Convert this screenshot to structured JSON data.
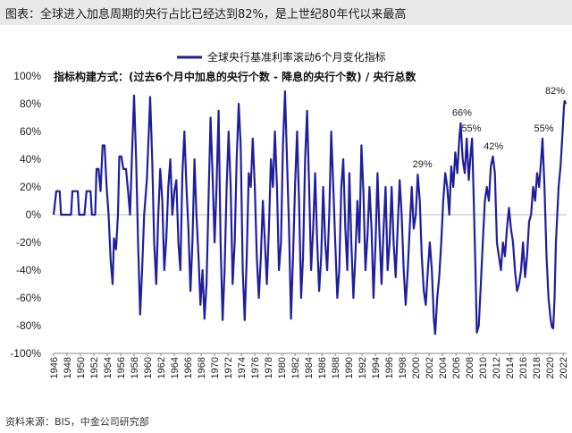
{
  "header": {
    "title": "图表：全球进入加息周期的央行占比已经达到82%，是上世纪80年代以来最高"
  },
  "footer": {
    "source": "资料来源：BIS，中金公司研究部"
  },
  "colors": {
    "series": "#1f1f9c",
    "zero_line": "#bdbdbd",
    "header_bg": "#e9e9e9"
  },
  "chart_data": {
    "type": "line",
    "title": "",
    "xlabel": "",
    "ylabel": "",
    "legend": {
      "label": "全球央行基准利率滚动6个月变化指标",
      "position": "top-center"
    },
    "subtitle": "指标构建方式：(过去6个月中加息的央行个数 - 降息的央行个数) / 央行总数",
    "xlim": [
      1946,
      2022.5
    ],
    "ylim": [
      -100,
      100
    ],
    "yticks": [
      "100%",
      "80%",
      "60%",
      "40%",
      "20%",
      "0%",
      "-20%",
      "-40%",
      "-60%",
      "-80%",
      "-100%"
    ],
    "xticks": [
      "1946",
      "1948",
      "1950",
      "1952",
      "1954",
      "1956",
      "1958",
      "1960",
      "1962",
      "1964",
      "1966",
      "1968",
      "1970",
      "1972",
      "1974",
      "1976",
      "1978",
      "1980",
      "1982",
      "1984",
      "1986",
      "1988",
      "1990",
      "1992",
      "1994",
      "1996",
      "1998",
      "2000",
      "2002",
      "2004",
      "2006",
      "2008",
      "2010",
      "2012",
      "2014",
      "2016",
      "2018",
      "2020",
      "2022"
    ],
    "grid": false,
    "annotations": [
      {
        "text": "29%",
        "x": 2001.0,
        "y": 29
      },
      {
        "text": "66%",
        "x": 2006.9,
        "y": 66
      },
      {
        "text": "55%",
        "x": 2008.3,
        "y": 55
      },
      {
        "text": "42%",
        "x": 2011.6,
        "y": 42
      },
      {
        "text": "55%",
        "x": 2019.1,
        "y": 55
      },
      {
        "text": "82%",
        "x": 2022.2,
        "y": 82
      }
    ],
    "series": [
      {
        "name": "全球央行基准利率滚动6个月变化指标",
        "points": [
          [
            1946.0,
            0
          ],
          [
            1946.4,
            17
          ],
          [
            1946.9,
            17
          ],
          [
            1947.1,
            0
          ],
          [
            1948.6,
            0
          ],
          [
            1948.8,
            17
          ],
          [
            1949.6,
            17
          ],
          [
            1949.8,
            0
          ],
          [
            1950.6,
            0
          ],
          [
            1950.9,
            17
          ],
          [
            1951.5,
            17
          ],
          [
            1951.7,
            0
          ],
          [
            1952.2,
            0
          ],
          [
            1952.4,
            33
          ],
          [
            1952.7,
            33
          ],
          [
            1953.0,
            17
          ],
          [
            1953.3,
            50
          ],
          [
            1953.6,
            50
          ],
          [
            1953.9,
            20
          ],
          [
            1954.2,
            0
          ],
          [
            1954.5,
            -33
          ],
          [
            1954.8,
            -50
          ],
          [
            1955.0,
            -17
          ],
          [
            1955.3,
            -25
          ],
          [
            1955.6,
            0
          ],
          [
            1955.8,
            42
          ],
          [
            1956.1,
            42
          ],
          [
            1956.4,
            33
          ],
          [
            1956.8,
            33
          ],
          [
            1957.1,
            17
          ],
          [
            1957.4,
            0
          ],
          [
            1957.7,
            45
          ],
          [
            1958.0,
            86
          ],
          [
            1958.3,
            40
          ],
          [
            1958.6,
            -20
          ],
          [
            1958.9,
            -72
          ],
          [
            1959.2,
            -40
          ],
          [
            1959.5,
            0
          ],
          [
            1959.9,
            25
          ],
          [
            1960.2,
            60
          ],
          [
            1960.4,
            85
          ],
          [
            1960.7,
            40
          ],
          [
            1961.0,
            -20
          ],
          [
            1961.3,
            -50
          ],
          [
            1961.6,
            0
          ],
          [
            1961.9,
            33
          ],
          [
            1962.2,
            10
          ],
          [
            1962.5,
            -40
          ],
          [
            1962.8,
            -17
          ],
          [
            1963.1,
            20
          ],
          [
            1963.4,
            40
          ],
          [
            1963.7,
            0
          ],
          [
            1964.0,
            17
          ],
          [
            1964.3,
            25
          ],
          [
            1964.6,
            -20
          ],
          [
            1964.9,
            -40
          ],
          [
            1965.2,
            30
          ],
          [
            1965.5,
            60
          ],
          [
            1965.8,
            20
          ],
          [
            1966.1,
            -10
          ],
          [
            1966.4,
            -55
          ],
          [
            1966.7,
            -20
          ],
          [
            1967.0,
            40
          ],
          [
            1967.3,
            0
          ],
          [
            1967.6,
            -30
          ],
          [
            1967.9,
            -65
          ],
          [
            1968.2,
            -40
          ],
          [
            1968.5,
            -75
          ],
          [
            1968.8,
            -50
          ],
          [
            1969.1,
            10
          ],
          [
            1969.4,
            70
          ],
          [
            1969.7,
            30
          ],
          [
            1970.0,
            -20
          ],
          [
            1970.3,
            20
          ],
          [
            1970.6,
            75
          ],
          [
            1970.9,
            -20
          ],
          [
            1971.2,
            -76
          ],
          [
            1971.5,
            -40
          ],
          [
            1971.8,
            20
          ],
          [
            1972.1,
            60
          ],
          [
            1972.4,
            20
          ],
          [
            1972.7,
            -50
          ],
          [
            1973.0,
            -20
          ],
          [
            1973.3,
            40
          ],
          [
            1973.6,
            80
          ],
          [
            1973.9,
            50
          ],
          [
            1974.2,
            -40
          ],
          [
            1974.5,
            -76
          ],
          [
            1974.8,
            -30
          ],
          [
            1975.1,
            30
          ],
          [
            1975.4,
            20
          ],
          [
            1975.7,
            55
          ],
          [
            1976.0,
            20
          ],
          [
            1976.3,
            -30
          ],
          [
            1976.6,
            -60
          ],
          [
            1976.9,
            -30
          ],
          [
            1977.2,
            10
          ],
          [
            1977.5,
            -20
          ],
          [
            1977.8,
            -50
          ],
          [
            1978.1,
            -10
          ],
          [
            1978.4,
            40
          ],
          [
            1978.7,
            20
          ],
          [
            1979.0,
            60
          ],
          [
            1979.3,
            20
          ],
          [
            1979.6,
            -40
          ],
          [
            1979.9,
            -20
          ],
          [
            1980.2,
            50
          ],
          [
            1980.5,
            89
          ],
          [
            1980.8,
            40
          ],
          [
            1981.1,
            -10
          ],
          [
            1981.4,
            -75
          ],
          [
            1981.7,
            -30
          ],
          [
            1982.0,
            20
          ],
          [
            1982.3,
            60
          ],
          [
            1982.6,
            10
          ],
          [
            1982.9,
            -60
          ],
          [
            1983.2,
            -30
          ],
          [
            1983.5,
            40
          ],
          [
            1983.8,
            75
          ],
          [
            1984.1,
            20
          ],
          [
            1984.4,
            -40
          ],
          [
            1984.7,
            -10
          ],
          [
            1985.0,
            30
          ],
          [
            1985.3,
            -20
          ],
          [
            1985.6,
            -55
          ],
          [
            1985.9,
            -30
          ],
          [
            1986.2,
            20
          ],
          [
            1986.5,
            -20
          ],
          [
            1986.8,
            -40
          ],
          [
            1987.1,
            0
          ],
          [
            1987.4,
            60
          ],
          [
            1987.7,
            20
          ],
          [
            1988.0,
            -20
          ],
          [
            1988.3,
            -60
          ],
          [
            1988.6,
            -40
          ],
          [
            1988.9,
            20
          ],
          [
            1989.2,
            40
          ],
          [
            1989.5,
            -10
          ],
          [
            1989.8,
            -40
          ],
          [
            1990.1,
            30
          ],
          [
            1990.4,
            -20
          ],
          [
            1990.7,
            -60
          ],
          [
            1991.0,
            -30
          ],
          [
            1991.3,
            10
          ],
          [
            1991.6,
            -20
          ],
          [
            1991.9,
            50
          ],
          [
            1992.2,
            15
          ],
          [
            1992.5,
            -40
          ],
          [
            1992.8,
            -15
          ],
          [
            1993.1,
            20
          ],
          [
            1993.4,
            -10
          ],
          [
            1993.7,
            -60
          ],
          [
            1994.0,
            -20
          ],
          [
            1994.3,
            30
          ],
          [
            1994.6,
            -15
          ],
          [
            1994.9,
            -50
          ],
          [
            1995.2,
            -10
          ],
          [
            1995.5,
            20
          ],
          [
            1995.8,
            -40
          ],
          [
            1996.1,
            -20
          ],
          [
            1996.4,
            20
          ],
          [
            1996.7,
            -20
          ],
          [
            1997.0,
            -45
          ],
          [
            1997.3,
            -10
          ],
          [
            1997.6,
            25
          ],
          [
            1997.9,
            0
          ],
          [
            1998.2,
            -40
          ],
          [
            1998.5,
            -65
          ],
          [
            1998.8,
            -40
          ],
          [
            1999.1,
            -10
          ],
          [
            1999.4,
            20
          ],
          [
            1999.7,
            -10
          ],
          [
            2000.0,
            0
          ],
          [
            2000.3,
            29
          ],
          [
            2000.6,
            10
          ],
          [
            2000.9,
            -30
          ],
          [
            2001.2,
            -55
          ],
          [
            2001.5,
            -65
          ],
          [
            2001.8,
            -40
          ],
          [
            2002.1,
            -20
          ],
          [
            2002.4,
            -40
          ],
          [
            2002.7,
            -75
          ],
          [
            2002.9,
            -86
          ],
          [
            2003.2,
            -60
          ],
          [
            2003.5,
            -45
          ],
          [
            2003.8,
            -20
          ],
          [
            2004.1,
            10
          ],
          [
            2004.4,
            30
          ],
          [
            2004.7,
            20
          ],
          [
            2005.0,
            0
          ],
          [
            2005.3,
            35
          ],
          [
            2005.6,
            20
          ],
          [
            2005.9,
            45
          ],
          [
            2006.2,
            30
          ],
          [
            2006.5,
            55
          ],
          [
            2006.7,
            66
          ],
          [
            2007.0,
            40
          ],
          [
            2007.3,
            30
          ],
          [
            2007.6,
            55
          ],
          [
            2007.9,
            25
          ],
          [
            2008.2,
            45
          ],
          [
            2008.4,
            55
          ],
          [
            2008.6,
            20
          ],
          [
            2008.9,
            -40
          ],
          [
            2009.1,
            -85
          ],
          [
            2009.4,
            -80
          ],
          [
            2009.7,
            -50
          ],
          [
            2010.0,
            -20
          ],
          [
            2010.3,
            10
          ],
          [
            2010.6,
            20
          ],
          [
            2010.9,
            10
          ],
          [
            2011.2,
            35
          ],
          [
            2011.5,
            42
          ],
          [
            2011.8,
            30
          ],
          [
            2012.1,
            -20
          ],
          [
            2012.4,
            -30
          ],
          [
            2012.7,
            -40
          ],
          [
            2013.0,
            -20
          ],
          [
            2013.3,
            -30
          ],
          [
            2013.6,
            -10
          ],
          [
            2013.9,
            5
          ],
          [
            2014.2,
            -10
          ],
          [
            2014.5,
            -20
          ],
          [
            2014.8,
            -40
          ],
          [
            2015.1,
            -55
          ],
          [
            2015.4,
            -50
          ],
          [
            2015.7,
            -40
          ],
          [
            2016.0,
            -20
          ],
          [
            2016.3,
            -45
          ],
          [
            2016.6,
            -30
          ],
          [
            2016.9,
            -5
          ],
          [
            2017.2,
            0
          ],
          [
            2017.5,
            20
          ],
          [
            2017.8,
            10
          ],
          [
            2018.1,
            30
          ],
          [
            2018.4,
            20
          ],
          [
            2018.7,
            40
          ],
          [
            2018.9,
            55
          ],
          [
            2019.2,
            20
          ],
          [
            2019.5,
            -30
          ],
          [
            2019.8,
            -60
          ],
          [
            2020.1,
            -75
          ],
          [
            2020.3,
            -81
          ],
          [
            2020.5,
            -82
          ],
          [
            2020.7,
            -60
          ],
          [
            2020.9,
            -20
          ],
          [
            2021.1,
            0
          ],
          [
            2021.3,
            20
          ],
          [
            2021.6,
            35
          ],
          [
            2021.9,
            60
          ],
          [
            2022.1,
            78
          ],
          [
            2022.2,
            82
          ],
          [
            2022.4,
            80
          ]
        ]
      }
    ]
  }
}
